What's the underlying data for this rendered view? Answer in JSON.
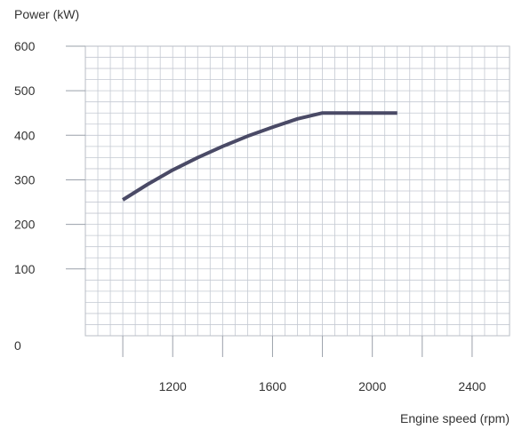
{
  "chart_data": {
    "type": "line",
    "title": "",
    "ylabel": "Power (kW)",
    "xlabel": "Engine speed (rpm)",
    "xlim": [
      850,
      2550
    ],
    "ylim": [
      -50,
      600
    ],
    "grid": true,
    "x_ticks": [
      1200,
      1600,
      2000,
      2400
    ],
    "x_tick_labels": [
      "1200",
      "1600",
      "2000",
      "2400"
    ],
    "y_ticks": [
      0,
      100,
      200,
      300,
      400,
      500,
      600
    ],
    "y_tick_labels": [
      "0",
      "100",
      "200",
      "300",
      "400",
      "500",
      "600"
    ],
    "series": [
      {
        "color": "#4a4a66",
        "x": [
          1000,
          1100,
          1200,
          1300,
          1400,
          1500,
          1600,
          1700,
          1800,
          1900,
          2000,
          2100
        ],
        "y": [
          255,
          290,
          322,
          350,
          375,
          398,
          418,
          437,
          450,
          450,
          450,
          450
        ]
      }
    ]
  }
}
